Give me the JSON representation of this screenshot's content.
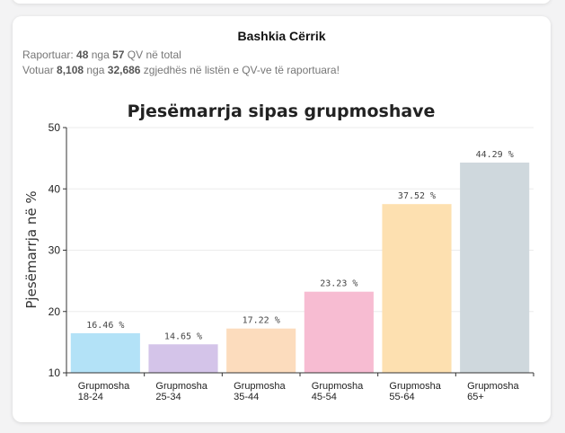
{
  "header": {
    "title": "Bashkia Cërrik",
    "reported_prefix": "Raportuar: ",
    "reported_count": "48",
    "reported_mid": " nga ",
    "reported_total": "57",
    "reported_suffix": " QV në total",
    "voted_prefix": "Votuar ",
    "voted_count": "8,108",
    "voted_mid": " nga ",
    "voted_total": "32,686",
    "voted_suffix": " zgjedhës në listën e QV-ve të raportuara!"
  },
  "chart_data": {
    "type": "bar",
    "title": "Pjesëmarrja sipas grupmoshave",
    "xlabel": "",
    "ylabel": "Pjesëmarrja në %",
    "ylim": [
      10,
      50
    ],
    "yticks": [
      "10",
      "20",
      "30",
      "40",
      "50"
    ],
    "categories": [
      [
        "Grupmosha",
        "18-24"
      ],
      [
        "Grupmosha",
        "25-34"
      ],
      [
        "Grupmosha",
        "35-44"
      ],
      [
        "Grupmosha",
        "45-54"
      ],
      [
        "Grupmosha",
        "55-64"
      ],
      [
        "Grupmosha",
        "65+"
      ]
    ],
    "values": [
      16.46,
      14.65,
      17.22,
      23.23,
      37.52,
      44.29
    ],
    "data_labels": [
      "16.46 %",
      "14.65 %",
      "17.22 %",
      "23.23 %",
      "37.52 %",
      "44.29 %"
    ],
    "colors": [
      "#b3e2f7",
      "#d4c4e9",
      "#fcdcbd",
      "#f7bcd2",
      "#fde0b0",
      "#cfd8dd"
    ],
    "grid": true
  }
}
